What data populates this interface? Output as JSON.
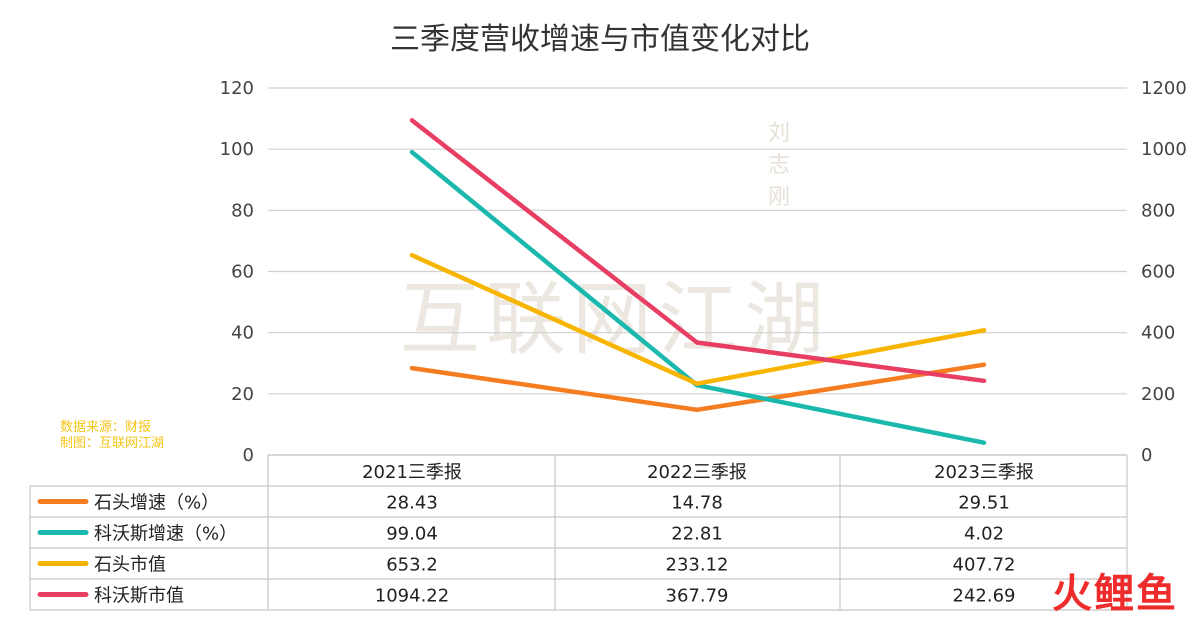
{
  "chart_data": {
    "type": "line",
    "title": "三季度营收增速与市值变化对比",
    "categories": [
      "2021三季报",
      "2022三季报",
      "2023三季报"
    ],
    "y_left": {
      "ticks": [
        "0",
        "20",
        "40",
        "60",
        "80",
        "100",
        "120"
      ],
      "ylim": [
        0,
        120
      ]
    },
    "y_right": {
      "ticks": [
        "0",
        "200",
        "400",
        "600",
        "800",
        "1000",
        "1200"
      ],
      "ylim": [
        0,
        1200
      ]
    },
    "series": [
      {
        "name": "石头增速（%）",
        "axis": "left",
        "color": "#f57c1f",
        "values": [
          28.43,
          14.78,
          29.51
        ],
        "labels": [
          "28.43",
          "14.78",
          "29.51"
        ]
      },
      {
        "name": "科沃斯增速（%）",
        "axis": "left",
        "color": "#1bb9ad",
        "values": [
          99.04,
          22.81,
          4.02
        ],
        "labels": [
          "99.04",
          "22.81",
          "4.02"
        ]
      },
      {
        "name": "石头市值",
        "axis": "right",
        "color": "#f7b500",
        "values": [
          653.2,
          233.12,
          407.72
        ],
        "labels": [
          "653.2",
          "233.12",
          "407.72"
        ]
      },
      {
        "name": "科沃斯市值",
        "axis": "right",
        "color": "#e83e63",
        "values": [
          1094.22,
          367.79,
          242.69
        ],
        "labels": [
          "1094.22",
          "367.79",
          "242.69"
        ]
      }
    ],
    "grid": true,
    "legend": "data-table-below"
  },
  "source_note": [
    "数据来源：财报",
    "制图：互联网江湖"
  ],
  "watermark": {
    "main": "互联网江湖",
    "seal": "刘志刚"
  },
  "brand": "火鲤鱼"
}
